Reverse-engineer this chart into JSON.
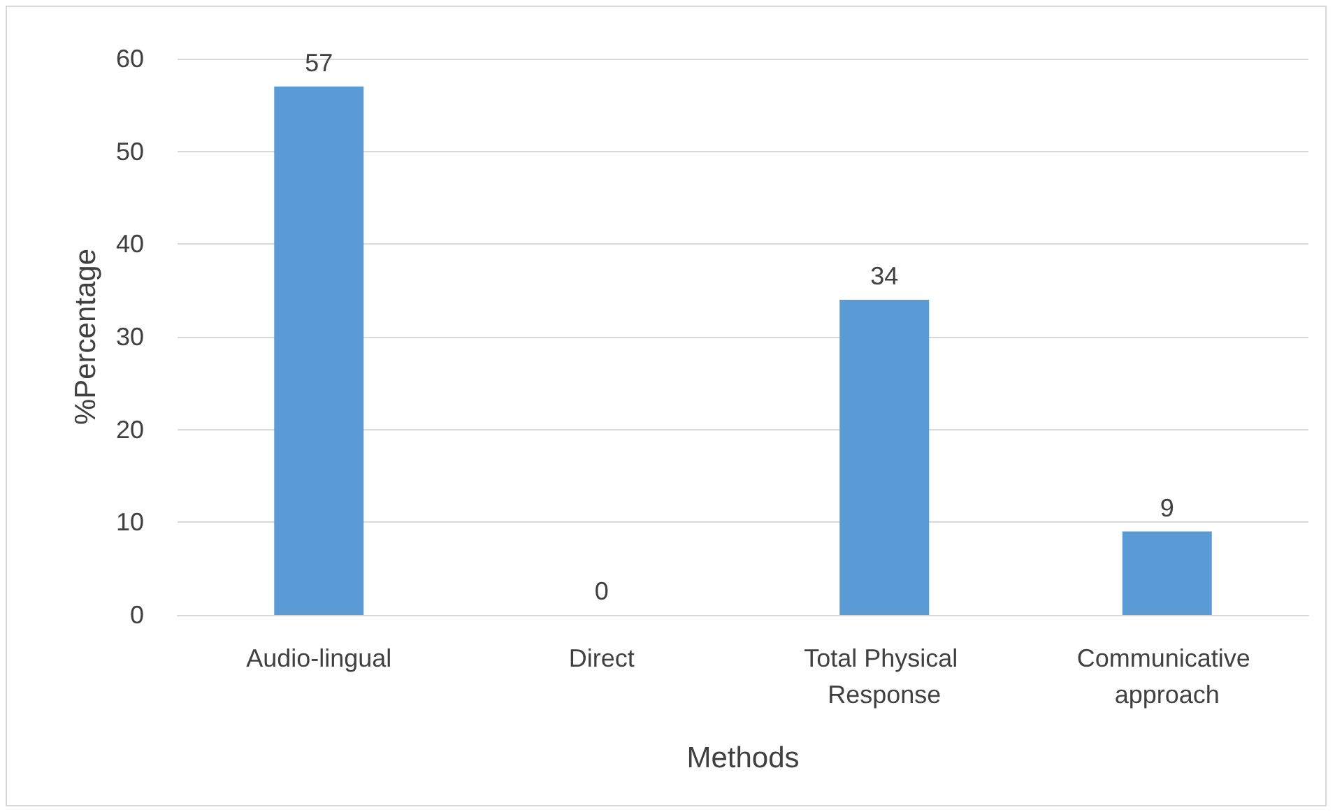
{
  "chart_data": {
    "type": "bar",
    "xlabel": "Methods",
    "ylabel": "%Percentage",
    "categories": [
      "Audio-lingual",
      "Direct",
      "Total Physical Response",
      "Communicative approach"
    ],
    "values": [
      57,
      0,
      34,
      9
    ],
    "color": "#5b9bd5",
    "ylim": [
      0,
      60
    ],
    "yticks": [
      0,
      10,
      20,
      30,
      40,
      50,
      60
    ],
    "grid": "y",
    "data_labels": true
  }
}
